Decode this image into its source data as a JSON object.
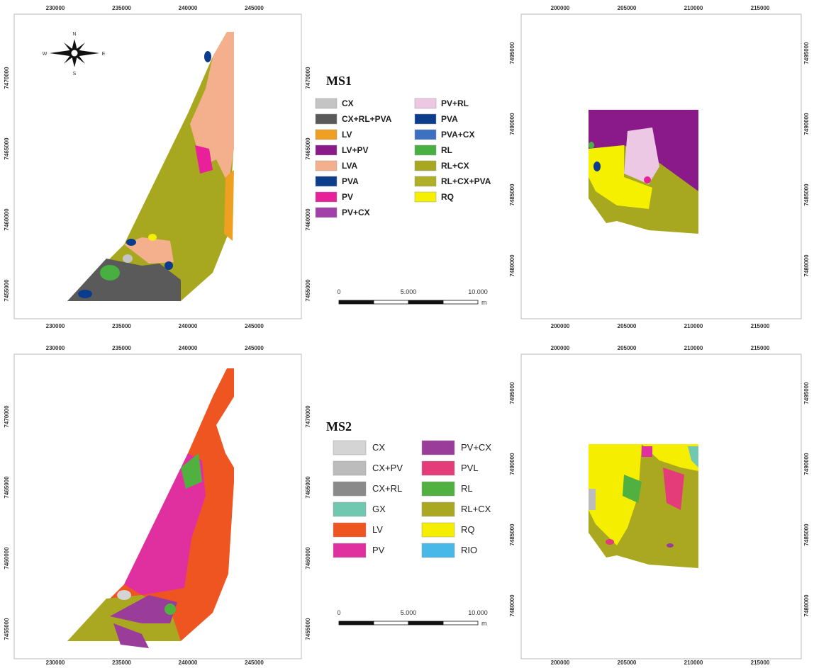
{
  "compass": {
    "n": "N",
    "s": "S",
    "e": "E",
    "w": "W"
  },
  "maps": [
    {
      "x_ticks": [
        230000,
        235000,
        240000,
        245000
      ],
      "y_ticks": [
        7470000,
        7465000,
        7460000,
        7455000
      ]
    },
    {
      "x_ticks": [
        200000,
        205000,
        210000,
        215000
      ],
      "y_ticks": [
        7495000,
        7490000,
        7485000,
        7480000
      ]
    },
    {
      "x_ticks": [
        230000,
        235000,
        240000,
        245000
      ],
      "y_ticks": [
        7470000,
        7465000,
        7460000,
        7455000
      ]
    },
    {
      "x_ticks": [
        200000,
        205000,
        210000,
        215000
      ],
      "y_ticks": [
        7495000,
        7490000,
        7485000,
        7480000
      ]
    }
  ],
  "legends": [
    {
      "title": "MS1",
      "items": [
        {
          "label": "CX",
          "color": "#c4c4c4"
        },
        {
          "label": "CX+RL+PVA",
          "color": "#5a5a5a"
        },
        {
          "label": "LV",
          "color": "#f0a020"
        },
        {
          "label": "LV+PV",
          "color": "#8a1a8a"
        },
        {
          "label": "LVA",
          "color": "#f4b08c"
        },
        {
          "label": "PVA",
          "color": "#0c3c8c"
        },
        {
          "label": "PV",
          "color": "#e8209a"
        },
        {
          "label": "PV+CX",
          "color": "#a040a8"
        },
        {
          "label": "PV+RL",
          "color": "#ecc8e4"
        },
        {
          "label": "PVA",
          "color": "#0c3c8c"
        },
        {
          "label": "PVA+CX",
          "color": "#3c70c0"
        },
        {
          "label": "RL",
          "color": "#48b040"
        },
        {
          "label": "RL+CX",
          "color": "#a8a820"
        },
        {
          "label": "RL+CX+PVA",
          "color": "#b0b028"
        },
        {
          "label": "RQ",
          "color": "#f4f000"
        }
      ]
    },
    {
      "title": "MS2",
      "items": [
        {
          "label": "CX",
          "color": "#d4d4d4"
        },
        {
          "label": "CX+PV",
          "color": "#bcbcbc"
        },
        {
          "label": "CX+RL",
          "color": "#8a8a8a"
        },
        {
          "label": "GX",
          "color": "#70c8b0"
        },
        {
          "label": "LV",
          "color": "#ee5520"
        },
        {
          "label": "PV",
          "color": "#e030a0"
        },
        {
          "label": "PV+CX",
          "color": "#9a3c9a"
        },
        {
          "label": "PVL",
          "color": "#e43c78"
        },
        {
          "label": "RL",
          "color": "#50b040"
        },
        {
          "label": "RL+CX",
          "color": "#aaa820"
        },
        {
          "label": "RQ",
          "color": "#f6ee00"
        },
        {
          "label": "RIO",
          "color": "#48b8e8"
        }
      ]
    }
  ],
  "scale_bars": [
    {
      "labels": [
        "0",
        "5.000",
        "10.000"
      ],
      "unit": "m"
    },
    {
      "labels": [
        "0",
        "5.000",
        "10.000"
      ],
      "unit": "m"
    }
  ]
}
